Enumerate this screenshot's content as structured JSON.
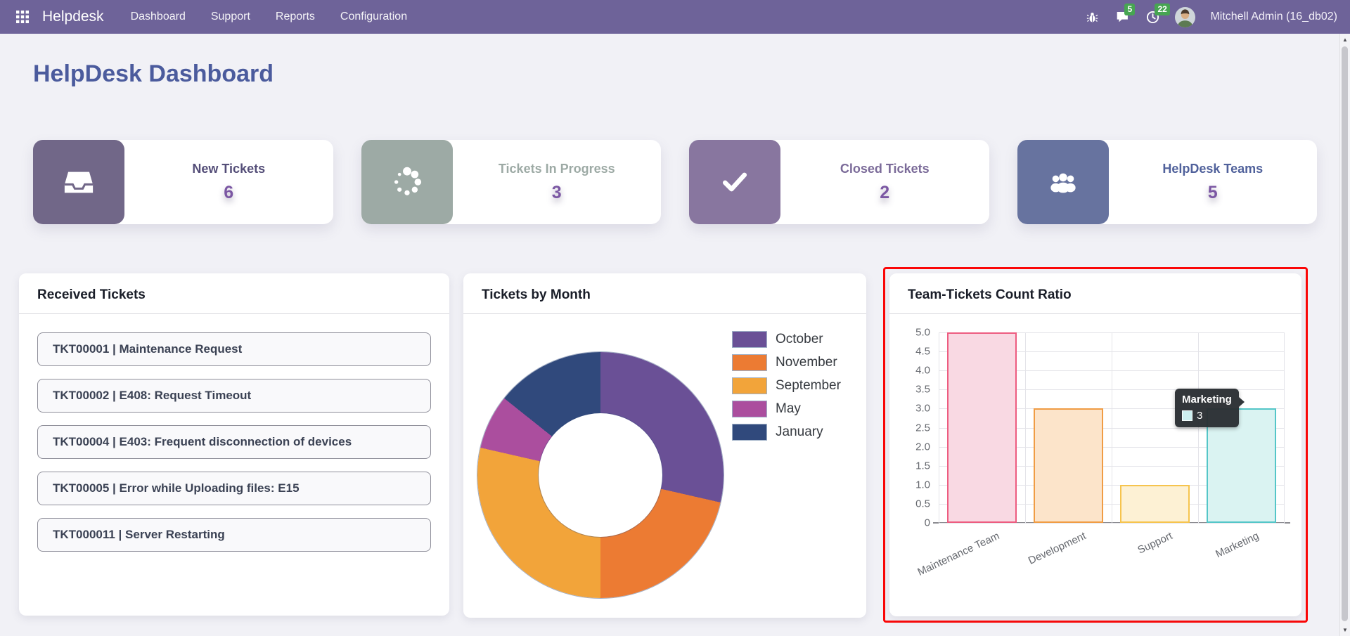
{
  "navbar": {
    "brand": "Helpdesk",
    "menu": [
      "Dashboard",
      "Support",
      "Reports",
      "Configuration"
    ],
    "messages_badge": "5",
    "activities_badge": "22",
    "user": "Mitchell Admin (16_db02)"
  },
  "page": {
    "title": "HelpDesk Dashboard"
  },
  "kpis": [
    {
      "label": "New Tickets",
      "value": "6",
      "icon": "inbox-icon"
    },
    {
      "label": "Tickets In Progress",
      "value": "3",
      "icon": "spinner-icon"
    },
    {
      "label": "Closed Tickets",
      "value": "2",
      "icon": "check-icon"
    },
    {
      "label": "HelpDesk Teams",
      "value": "5",
      "icon": "users-icon"
    }
  ],
  "panels": {
    "received": {
      "title": "Received Tickets",
      "items": [
        "TKT00001 | Maintenance Request",
        "TKT00002 | E408: Request Timeout",
        "TKT00004 | E403: Frequent disconnection of devices",
        "TKT00005 | Error while Uploading files: E15",
        "TKT000011 | Server Restarting"
      ]
    },
    "by_month": {
      "title": "Tickets by Month"
    },
    "team_ratio": {
      "title": "Team-Tickets Count Ratio",
      "tooltip": {
        "title": "Marketing",
        "value": "3",
        "swatch_color": "#cdeff0"
      },
      "highlight_color": "#fb0707"
    }
  },
  "chart_data": [
    {
      "type": "pie",
      "donut": true,
      "title": "Tickets by Month",
      "labels": [
        "October",
        "November",
        "September",
        "May",
        "January"
      ],
      "values": [
        4,
        3,
        4,
        1,
        2
      ],
      "colors": [
        "#6a5096",
        "#ec7b33",
        "#f2a43a",
        "#ab4e9e",
        "#30497c"
      ],
      "legend_position": "right"
    },
    {
      "type": "bar",
      "title": "Team-Tickets Count Ratio",
      "categories": [
        "Maintenance Team",
        "Development",
        "Support",
        "Marketing"
      ],
      "values": [
        5,
        3,
        1,
        3
      ],
      "fill_colors": [
        "#f9d9e3",
        "#fce4ca",
        "#fdf1d4",
        "#daf3f2"
      ],
      "border_colors": [
        "#ed5c80",
        "#f09c44",
        "#f6c44e",
        "#54c6c8"
      ],
      "ylim": [
        0,
        5
      ],
      "yticks": [
        "5.0",
        "4.5",
        "4.0",
        "3.5",
        "3.0",
        "2.5",
        "2.0",
        "1.5",
        "1.0",
        "0.5",
        "0"
      ],
      "grid": true,
      "xlabel_rotation": -25
    }
  ]
}
